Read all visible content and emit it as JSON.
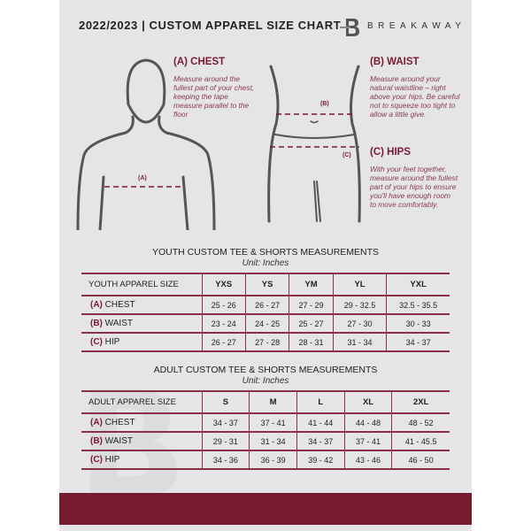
{
  "header": {
    "title": "2022/2023 | CUSTOM APPAREL SIZE CHART",
    "brand": "BREAKAWAY",
    "watermark": "B"
  },
  "guides": {
    "chest": {
      "title": "(A) CHEST",
      "text": "Measure around the fullest part of your chest, keeping the tape measure parallel to the floor",
      "marker": "(A)"
    },
    "waist": {
      "title": "(B) WAIST",
      "text": "Measure around your natural waistline – right above your hips. Be careful not to squeeze too tight to allow a little give.",
      "marker": "(B)"
    },
    "hips": {
      "title": "(C) HIPS",
      "text": "With your feet together, measure around the fullest part of your hips to ensure you'll have enough room to move comfortably.",
      "marker": "(C)"
    }
  },
  "youth": {
    "caption": "YOUTH CUSTOM TEE & SHORTS MEASUREMENTS",
    "unit": "Unit: Inches",
    "header": "YOUTH APPAREL SIZE",
    "sizes": [
      "YXS",
      "YS",
      "YM",
      "YL",
      "YXL"
    ],
    "rows": [
      {
        "letter": "(A)",
        "label": "CHEST",
        "values": [
          "25 - 26",
          "26 - 27",
          "27 - 29",
          "29 - 32.5",
          "32.5 - 35.5"
        ]
      },
      {
        "letter": "(B)",
        "label": "WAIST",
        "values": [
          "23 - 24",
          "24 - 25",
          "25 - 27",
          "27 - 30",
          "30 - 33"
        ]
      },
      {
        "letter": "(C)",
        "label": "HIP",
        "values": [
          "26 - 27",
          "27 - 28",
          "28 - 31",
          "31 - 34",
          "34 - 37"
        ]
      }
    ]
  },
  "adult": {
    "caption": "ADULT CUSTOM TEE & SHORTS MEASUREMENTS",
    "unit": "Unit: Inches",
    "header": "ADULT APPAREL SIZE",
    "sizes": [
      "S",
      "M",
      "L",
      "XL",
      "2XL"
    ],
    "rows": [
      {
        "letter": "(A)",
        "label": "CHEST",
        "values": [
          "34 - 37",
          "37 - 41",
          "41 - 44",
          "44 - 48",
          "48 - 52"
        ]
      },
      {
        "letter": "(B)",
        "label": "WAIST",
        "values": [
          "29 - 31",
          "31 - 34",
          "34 - 37",
          "37 - 41",
          "41 - 45.5"
        ]
      },
      {
        "letter": "(C)",
        "label": "HIP",
        "values": [
          "34 - 36",
          "36 - 39",
          "39 - 42",
          "43 - 46",
          "46 - 50"
        ]
      }
    ]
  },
  "colors": {
    "accent": "#761a30",
    "panel": "#e5e5e7"
  }
}
